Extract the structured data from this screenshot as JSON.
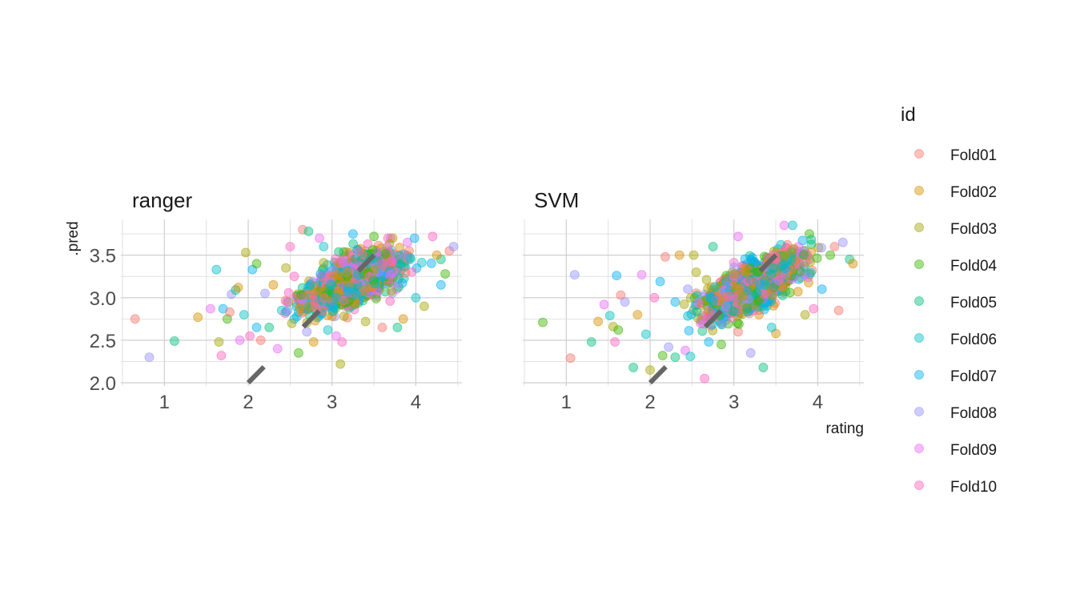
{
  "chart_data": {
    "type": "scatter",
    "facets": [
      "ranger",
      "SVM"
    ],
    "xlabel": "rating",
    "ylabel": ".pred",
    "xlim": [
      0.5,
      4.55
    ],
    "ylim": [
      2.0,
      3.92
    ],
    "x_ticks": [
      "1",
      "2",
      "3",
      "4"
    ],
    "y_ticks": [
      "2.0",
      "2.5",
      "3.0",
      "3.5"
    ],
    "grid": true,
    "reference_line": {
      "style": "dashed",
      "slope": 1,
      "intercept": 0,
      "color": "#666666"
    },
    "legend": {
      "title": "id",
      "position": "right",
      "entries": [
        "Fold01",
        "Fold02",
        "Fold03",
        "Fold04",
        "Fold05",
        "Fold06",
        "Fold07",
        "Fold08",
        "Fold09",
        "Fold10"
      ],
      "colors": [
        "#F8766D",
        "#D89000",
        "#A3A500",
        "#39B600",
        "#00BF7D",
        "#00BFC4",
        "#00B0F6",
        "#9590FF",
        "#E76BF3",
        "#FF62BC"
      ]
    },
    "series": [
      {
        "facet": "ranger",
        "points": [
          [
            0.65,
            2.75
          ],
          [
            0.82,
            2.3
          ],
          [
            1.12,
            2.49
          ],
          [
            1.4,
            2.77
          ],
          [
            1.55,
            2.87
          ],
          [
            1.62,
            3.33
          ],
          [
            1.65,
            2.48
          ],
          [
            1.68,
            2.32
          ],
          [
            1.7,
            2.87
          ],
          [
            1.75,
            2.75
          ],
          [
            1.78,
            2.83
          ],
          [
            1.8,
            3.04
          ],
          [
            1.85,
            3.09
          ],
          [
            1.88,
            3.12
          ],
          [
            1.9,
            2.5
          ],
          [
            1.95,
            2.8
          ],
          [
            1.97,
            3.53
          ],
          [
            2.02,
            2.55
          ],
          [
            2.05,
            3.33
          ],
          [
            2.1,
            3.4
          ],
          [
            2.15,
            2.5
          ],
          [
            2.2,
            3.05
          ],
          [
            2.25,
            2.65
          ],
          [
            2.3,
            3.15
          ],
          [
            2.35,
            2.4
          ],
          [
            2.4,
            2.85
          ],
          [
            2.45,
            3.35
          ],
          [
            2.5,
            3.6
          ],
          [
            2.55,
            2.75
          ],
          [
            2.6,
            2.35
          ],
          [
            2.65,
            3.8
          ],
          [
            2.7,
            2.6
          ],
          [
            2.72,
            3.78
          ],
          [
            2.78,
            2.48
          ],
          [
            2.85,
            3.7
          ],
          [
            2.95,
            2.62
          ],
          [
            3.1,
            2.22
          ],
          [
            3.12,
            2.48
          ],
          [
            3.25,
            3.75
          ],
          [
            3.5,
            3.72
          ],
          [
            3.6,
            2.65
          ],
          [
            3.7,
            3.7
          ],
          [
            3.78,
            2.65
          ],
          [
            3.85,
            2.75
          ],
          [
            3.9,
            3.65
          ],
          [
            4.0,
            3.0
          ],
          [
            4.1,
            2.9
          ],
          [
            4.2,
            3.72
          ],
          [
            4.3,
            3.15
          ],
          [
            4.35,
            3.28
          ],
          [
            4.4,
            3.55
          ],
          [
            4.45,
            3.6
          ],
          [
            4.3,
            3.45
          ],
          [
            4.25,
            3.5
          ],
          [
            3.05,
            2.55
          ],
          [
            2.9,
            3.6
          ],
          [
            3.4,
            2.72
          ],
          [
            2.55,
            3.25
          ],
          [
            2.1,
            2.65
          ],
          [
            2.48,
            2.95
          ]
        ],
        "cloud": {
          "x_range": [
            2.25,
            4.35
          ],
          "y_range": [
            2.65,
            3.7
          ],
          "slope": 0.42,
          "center": [
            3.25,
            3.2
          ]
        }
      },
      {
        "facet": "SVM",
        "points": [
          [
            0.72,
            2.71
          ],
          [
            1.05,
            2.29
          ],
          [
            1.1,
            3.27
          ],
          [
            1.3,
            2.48
          ],
          [
            1.38,
            2.72
          ],
          [
            1.45,
            2.92
          ],
          [
            1.52,
            2.79
          ],
          [
            1.56,
            2.66
          ],
          [
            1.58,
            2.48
          ],
          [
            1.6,
            3.26
          ],
          [
            1.62,
            2.62
          ],
          [
            1.65,
            3.03
          ],
          [
            1.7,
            2.95
          ],
          [
            1.8,
            2.18
          ],
          [
            1.85,
            2.8
          ],
          [
            1.9,
            3.27
          ],
          [
            1.95,
            2.57
          ],
          [
            2.0,
            2.15
          ],
          [
            2.05,
            3.0
          ],
          [
            2.12,
            3.19
          ],
          [
            2.15,
            2.32
          ],
          [
            2.18,
            3.48
          ],
          [
            2.22,
            2.42
          ],
          [
            2.3,
            2.3
          ],
          [
            2.35,
            3.5
          ],
          [
            2.42,
            2.38
          ],
          [
            2.48,
            2.31
          ],
          [
            2.52,
            3.5
          ],
          [
            2.65,
            2.05
          ],
          [
            2.7,
            2.48
          ],
          [
            2.85,
            2.45
          ],
          [
            3.05,
            2.6
          ],
          [
            3.2,
            2.35
          ],
          [
            3.35,
            2.18
          ],
          [
            3.5,
            2.58
          ],
          [
            3.6,
            3.85
          ],
          [
            3.7,
            3.85
          ],
          [
            3.85,
            2.8
          ],
          [
            3.95,
            2.87
          ],
          [
            4.05,
            3.1
          ],
          [
            4.15,
            3.5
          ],
          [
            4.25,
            2.85
          ],
          [
            4.3,
            3.65
          ],
          [
            4.38,
            3.45
          ],
          [
            4.42,
            3.4
          ],
          [
            3.05,
            3.72
          ],
          [
            3.45,
            2.65
          ],
          [
            2.55,
            3.3
          ],
          [
            2.6,
            2.7
          ],
          [
            2.3,
            2.95
          ],
          [
            3.9,
            3.75
          ],
          [
            4.2,
            3.6
          ],
          [
            2.45,
            3.1
          ],
          [
            2.75,
            3.6
          ],
          [
            3.3,
            2.8
          ]
        ],
        "cloud": {
          "x_range": [
            2.2,
            4.35
          ],
          "y_range": [
            2.55,
            3.7
          ],
          "slope": 0.48,
          "center": [
            3.25,
            3.15
          ]
        }
      }
    ]
  }
}
